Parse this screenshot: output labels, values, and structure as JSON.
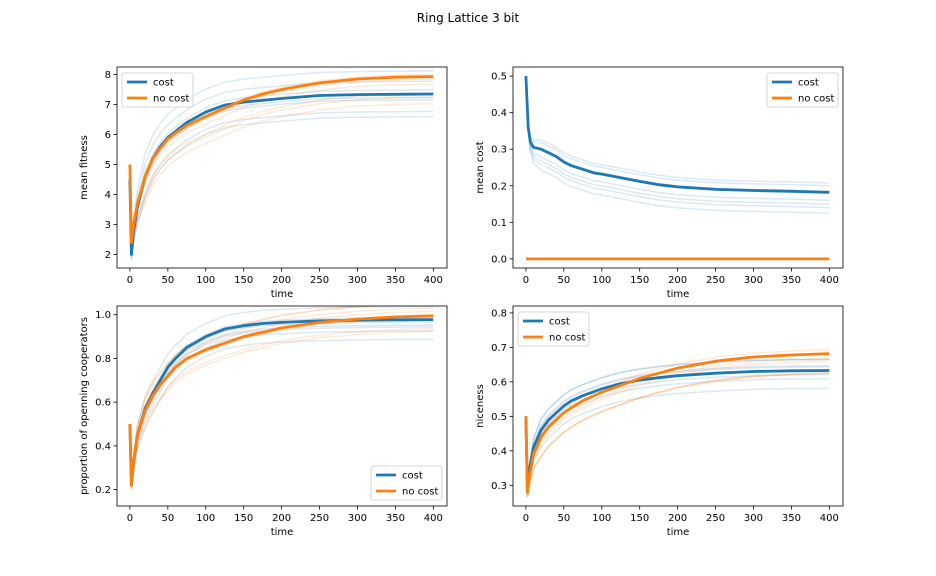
{
  "figure": {
    "title": "Ring Lattice 3 bit"
  },
  "colors": {
    "cost": "#1f77b4",
    "no_cost": "#ff7f0e"
  },
  "chart_data": [
    {
      "type": "line",
      "xlabel": "time",
      "ylabel": "mean fitness",
      "xlim": [
        -17,
        418
      ],
      "ylim": [
        1.55,
        8.25
      ],
      "xticks": [
        0,
        50,
        100,
        150,
        200,
        250,
        300,
        350,
        400
      ],
      "yticks": [
        2,
        3,
        4,
        5,
        6,
        7,
        8
      ],
      "grid": false,
      "legend": "top-left",
      "series": [
        {
          "name": "cost",
          "color": "#1f77b4",
          "x": [
            0,
            2,
            5,
            10,
            20,
            30,
            40,
            50,
            60,
            75,
            100,
            125,
            150,
            175,
            200,
            250,
            300,
            350,
            400
          ],
          "y": [
            4.5,
            2.0,
            2.8,
            3.6,
            4.6,
            5.2,
            5.6,
            5.9,
            6.1,
            6.4,
            6.75,
            6.98,
            7.08,
            7.14,
            7.2,
            7.3,
            7.33,
            7.34,
            7.35
          ]
        },
        {
          "name": "no cost",
          "color": "#ff7f0e",
          "x": [
            0,
            2,
            5,
            10,
            20,
            30,
            40,
            50,
            60,
            75,
            100,
            125,
            150,
            175,
            200,
            250,
            300,
            350,
            400
          ],
          "y": [
            5.0,
            2.4,
            3.0,
            3.7,
            4.6,
            5.2,
            5.55,
            5.85,
            6.05,
            6.3,
            6.6,
            6.88,
            7.15,
            7.35,
            7.5,
            7.72,
            7.85,
            7.91,
            7.93
          ]
        }
      ]
    },
    {
      "type": "line",
      "xlabel": "time",
      "ylabel": "mean cost",
      "xlim": [
        -17,
        418
      ],
      "ylim": [
        -0.025,
        0.525
      ],
      "xticks": [
        0,
        50,
        100,
        150,
        200,
        250,
        300,
        350,
        400
      ],
      "yticks": [
        0.0,
        0.1,
        0.2,
        0.3,
        0.4,
        0.5
      ],
      "grid": false,
      "legend": "top-right",
      "series": [
        {
          "name": "cost",
          "color": "#1f77b4",
          "x": [
            0,
            3,
            6,
            10,
            20,
            30,
            40,
            50,
            60,
            75,
            90,
            100,
            125,
            150,
            175,
            200,
            250,
            300,
            350,
            400
          ],
          "y": [
            0.5,
            0.36,
            0.32,
            0.305,
            0.3,
            0.29,
            0.28,
            0.265,
            0.255,
            0.245,
            0.235,
            0.232,
            0.222,
            0.212,
            0.203,
            0.197,
            0.19,
            0.187,
            0.185,
            0.182
          ]
        },
        {
          "name": "no cost",
          "color": "#ff7f0e",
          "x": [
            0,
            400
          ],
          "y": [
            0.0,
            0.0
          ]
        }
      ]
    },
    {
      "type": "line",
      "xlabel": "time",
      "ylabel": "proportion of openning cooperators",
      "xlim": [
        -17,
        418
      ],
      "ylim": [
        0.125,
        1.04
      ],
      "xticks": [
        0,
        50,
        100,
        150,
        200,
        250,
        300,
        350,
        400
      ],
      "yticks": [
        0.2,
        0.4,
        0.6,
        0.8,
        1.0
      ],
      "grid": false,
      "legend": "bottom-right",
      "series": [
        {
          "name": "cost",
          "color": "#1f77b4",
          "x": [
            0,
            2,
            5,
            10,
            20,
            30,
            40,
            50,
            60,
            75,
            100,
            125,
            150,
            175,
            200,
            250,
            300,
            350,
            400
          ],
          "y": [
            0.5,
            0.22,
            0.33,
            0.45,
            0.57,
            0.64,
            0.7,
            0.76,
            0.8,
            0.85,
            0.9,
            0.935,
            0.95,
            0.96,
            0.965,
            0.972,
            0.975,
            0.977,
            0.978
          ]
        },
        {
          "name": "no cost",
          "color": "#ff7f0e",
          "x": [
            0,
            2,
            5,
            10,
            20,
            30,
            40,
            50,
            60,
            75,
            100,
            125,
            150,
            175,
            200,
            250,
            300,
            350,
            400
          ],
          "y": [
            0.5,
            0.22,
            0.33,
            0.45,
            0.56,
            0.63,
            0.68,
            0.72,
            0.76,
            0.8,
            0.84,
            0.87,
            0.9,
            0.92,
            0.94,
            0.965,
            0.98,
            0.99,
            0.995
          ]
        }
      ]
    },
    {
      "type": "line",
      "xlabel": "time",
      "ylabel": "niceness",
      "xlim": [
        -17,
        418
      ],
      "ylim": [
        0.24,
        0.82
      ],
      "xticks": [
        0,
        50,
        100,
        150,
        200,
        250,
        300,
        350,
        400
      ],
      "yticks": [
        0.3,
        0.4,
        0.5,
        0.6,
        0.7,
        0.8
      ],
      "grid": false,
      "legend": "top-left",
      "series": [
        {
          "name": "cost",
          "color": "#1f77b4",
          "x": [
            0,
            2,
            5,
            10,
            20,
            30,
            40,
            50,
            60,
            75,
            100,
            125,
            150,
            175,
            200,
            250,
            300,
            350,
            400
          ],
          "y": [
            0.5,
            0.28,
            0.35,
            0.41,
            0.46,
            0.49,
            0.51,
            0.53,
            0.545,
            0.56,
            0.58,
            0.595,
            0.605,
            0.612,
            0.618,
            0.625,
            0.63,
            0.632,
            0.633
          ]
        },
        {
          "name": "no cost",
          "color": "#ff7f0e",
          "x": [
            0,
            2,
            5,
            10,
            20,
            30,
            40,
            50,
            60,
            75,
            100,
            125,
            150,
            175,
            200,
            250,
            300,
            350,
            400
          ],
          "y": [
            0.5,
            0.28,
            0.33,
            0.39,
            0.44,
            0.47,
            0.49,
            0.51,
            0.525,
            0.545,
            0.57,
            0.59,
            0.61,
            0.625,
            0.64,
            0.66,
            0.672,
            0.678,
            0.682
          ]
        }
      ]
    }
  ]
}
